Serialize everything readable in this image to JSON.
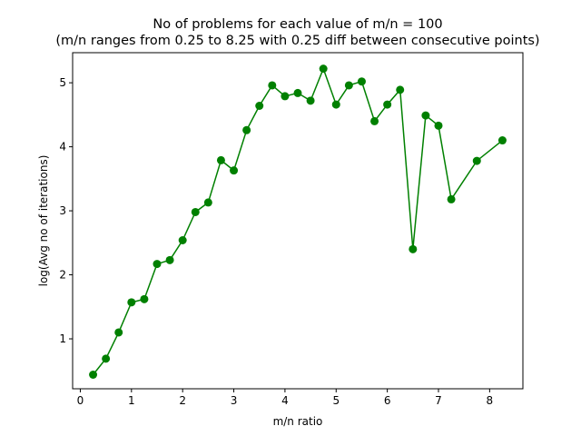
{
  "chart_data": {
    "type": "line",
    "title": "No of problems for each value of m/n = 100",
    "subtitle": "(m/n ranges from 0.25 to 8.25 with 0.25 diff between consecutive points)",
    "xlabel": "m/n ratio",
    "ylabel": "log(Avg no of iterations)",
    "xlim": [
      -0.15,
      8.65
    ],
    "ylim": [
      0.22,
      5.47
    ],
    "xticks": [
      0,
      1,
      2,
      3,
      4,
      5,
      6,
      7,
      8
    ],
    "yticks": [
      1,
      2,
      3,
      4,
      5
    ],
    "grid": false,
    "series": [
      {
        "color": "#008000",
        "marker": "circle",
        "x": [
          0.25,
          0.5,
          0.75,
          1.0,
          1.25,
          1.5,
          1.75,
          2.0,
          2.25,
          2.5,
          2.75,
          3.0,
          3.25,
          3.5,
          3.75,
          4.0,
          4.25,
          4.5,
          4.75,
          5.0,
          5.25,
          5.5,
          5.75,
          6.0,
          6.25,
          6.5,
          6.75,
          7.0,
          7.25,
          7.75,
          8.25
        ],
        "y": [
          0.44,
          0.69,
          1.1,
          1.57,
          1.62,
          2.17,
          2.23,
          2.54,
          2.98,
          3.13,
          3.79,
          3.63,
          4.26,
          4.64,
          4.96,
          4.79,
          4.84,
          4.72,
          5.22,
          4.66,
          4.96,
          5.02,
          4.4,
          4.66,
          4.89,
          2.4,
          4.49,
          4.33,
          3.18,
          3.78,
          4.1
        ]
      }
    ]
  }
}
